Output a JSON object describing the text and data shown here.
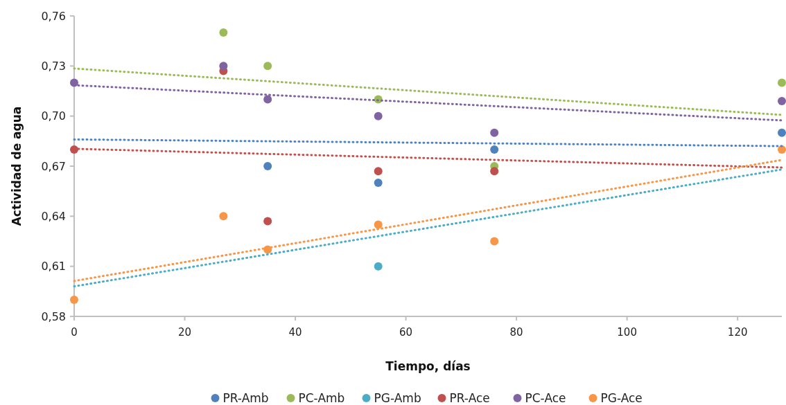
{
  "chart_data": {
    "type": "scatter",
    "xlabel": "Tiempo, días",
    "ylabel": "Actividad de agua",
    "x": [
      0,
      27,
      35,
      55,
      76,
      128
    ],
    "xlim": [
      0,
      128
    ],
    "xticks": [
      0,
      20,
      40,
      60,
      80,
      100,
      120
    ],
    "ylim": [
      0.58,
      0.76
    ],
    "yticks": [
      {
        "value": 0.58,
        "label": "0,58"
      },
      {
        "value": 0.61,
        "label": "0,61"
      },
      {
        "value": 0.64,
        "label": "0,64"
      },
      {
        "value": 0.67,
        "label": "0,67"
      },
      {
        "value": 0.7,
        "label": "0,70"
      },
      {
        "value": 0.73,
        "label": "0,73"
      },
      {
        "value": 0.76,
        "label": "0,76"
      }
    ],
    "grid": false,
    "legend": "bottom",
    "marker": "circle",
    "series": [
      {
        "name": "PR-Amb",
        "color": "#4f81bd",
        "values": [
          null,
          null,
          0.67,
          0.66,
          0.68,
          0.69
        ]
      },
      {
        "name": "PC-Amb",
        "color": "#9bbb59",
        "values": [
          null,
          0.75,
          0.73,
          0.71,
          0.67,
          0.72
        ]
      },
      {
        "name": "PG-Amb",
        "color": "#4bacc6",
        "values": [
          null,
          null,
          null,
          0.61,
          null,
          null
        ]
      },
      {
        "name": "PR-Ace",
        "color": "#c0504d",
        "values": [
          0.68,
          0.727,
          0.637,
          0.667,
          0.667,
          null
        ]
      },
      {
        "name": "PC-Ace",
        "color": "#8064a2",
        "values": [
          0.72,
          0.73,
          0.71,
          0.7,
          0.69,
          0.709
        ]
      },
      {
        "name": "PG-Ace",
        "color": "#f79646",
        "values": [
          0.59,
          0.64,
          0.62,
          0.635,
          0.625,
          0.68
        ]
      },
      {
        "type": "line",
        "line_style": "dotted",
        "marker": "none",
        "color": "#4f81bd",
        "values": [
          0.686,
          null,
          null,
          null,
          null,
          0.682
        ]
      },
      {
        "type": "line",
        "line_style": "dotted",
        "marker": "none",
        "color": "#9bbb59",
        "values": [
          0.7285,
          null,
          null,
          null,
          null,
          0.7007
        ]
      },
      {
        "type": "line",
        "line_style": "dotted",
        "marker": "none",
        "color": "#4bacc6",
        "values": [
          0.598,
          null,
          null,
          null,
          null,
          0.668
        ]
      },
      {
        "type": "line",
        "line_style": "dotted",
        "marker": "none",
        "color": "#c0504d",
        "values": [
          0.6804,
          null,
          null,
          null,
          null,
          0.6692
        ]
      },
      {
        "type": "line",
        "line_style": "dotted",
        "marker": "none",
        "color": "#8064a2",
        "values": [
          0.7185,
          null,
          null,
          null,
          null,
          0.6974
        ]
      },
      {
        "type": "line",
        "line_style": "dotted",
        "marker": "none",
        "color": "#f79646",
        "values": [
          0.6012,
          null,
          null,
          null,
          null,
          0.6737
        ]
      }
    ]
  }
}
